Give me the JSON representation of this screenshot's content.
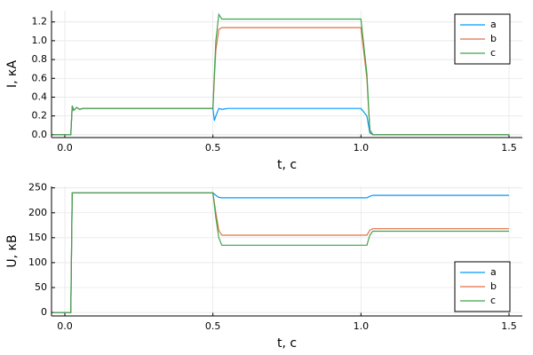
{
  "chart_data": [
    {
      "type": "line",
      "xlabel": "t, с",
      "ylabel": "I, кА",
      "legend": "top right",
      "grid": true,
      "xlim": [
        -0.045,
        1.545
      ],
      "ylim": [
        -0.03,
        1.32
      ],
      "xticks": [
        {
          "value": 0,
          "label": "0.0"
        },
        0.5,
        {
          "value": 1,
          "label": "1.0"
        },
        1.5
      ],
      "yticks": [
        {
          "value": 0,
          "label": "0.0"
        },
        0.2,
        0.4,
        0.6,
        0.8,
        {
          "value": 1,
          "label": "1.0"
        },
        1.2
      ],
      "x": [
        -0.04,
        0.02,
        0.025,
        0.03,
        0.04,
        0.05,
        0.06,
        0.5,
        0.505,
        0.51,
        0.52,
        0.53,
        0.55,
        1.0,
        1.02,
        1.03,
        1.04,
        1.5
      ],
      "series": [
        {
          "name": "a",
          "color": "#009afa",
          "values": [
            0,
            0,
            0.3,
            0.26,
            0.29,
            0.27,
            0.28,
            0.28,
            0.15,
            0.2,
            0.28,
            0.27,
            0.28,
            0.28,
            0.2,
            0.02,
            0,
            0
          ]
        },
        {
          "name": "b",
          "color": "#e26f46",
          "values": [
            0,
            0,
            0.3,
            0.26,
            0.29,
            0.27,
            0.28,
            0.28,
            0.6,
            0.9,
            1.12,
            1.14,
            1.14,
            1.14,
            0.6,
            0.05,
            0,
            0
          ]
        },
        {
          "name": "c",
          "color": "#3da44d",
          "values": [
            0,
            0,
            0.31,
            0.26,
            0.29,
            0.27,
            0.28,
            0.28,
            0.65,
            1.0,
            1.28,
            1.23,
            1.23,
            1.23,
            0.65,
            0.05,
            0,
            0
          ]
        }
      ]
    },
    {
      "type": "line",
      "xlabel": "t, с",
      "ylabel": "U, кВ",
      "legend": "bottom right",
      "grid": true,
      "xlim": [
        -0.045,
        1.545
      ],
      "ylim": [
        -7,
        253
      ],
      "xticks": [
        {
          "value": 0,
          "label": "0.0"
        },
        0.5,
        {
          "value": 1,
          "label": "1.0"
        },
        1.5
      ],
      "yticks": [
        0,
        50,
        100,
        150,
        200,
        250
      ],
      "x": [
        -0.04,
        0.02,
        0.025,
        0.5,
        0.51,
        0.52,
        0.53,
        0.55,
        1.02,
        1.03,
        1.04,
        1.5
      ],
      "series": [
        {
          "name": "a",
          "color": "#009afa",
          "values": [
            0,
            0,
            240,
            240,
            235,
            231,
            230,
            230,
            230,
            233,
            235,
            235
          ]
        },
        {
          "name": "b",
          "color": "#e26f46",
          "values": [
            0,
            0,
            240,
            240,
            200,
            165,
            155,
            155,
            155,
            165,
            168,
            168
          ]
        },
        {
          "name": "c",
          "color": "#3da44d",
          "values": [
            0,
            0,
            240,
            240,
            190,
            150,
            135,
            135,
            135,
            155,
            163,
            163
          ]
        }
      ]
    }
  ]
}
